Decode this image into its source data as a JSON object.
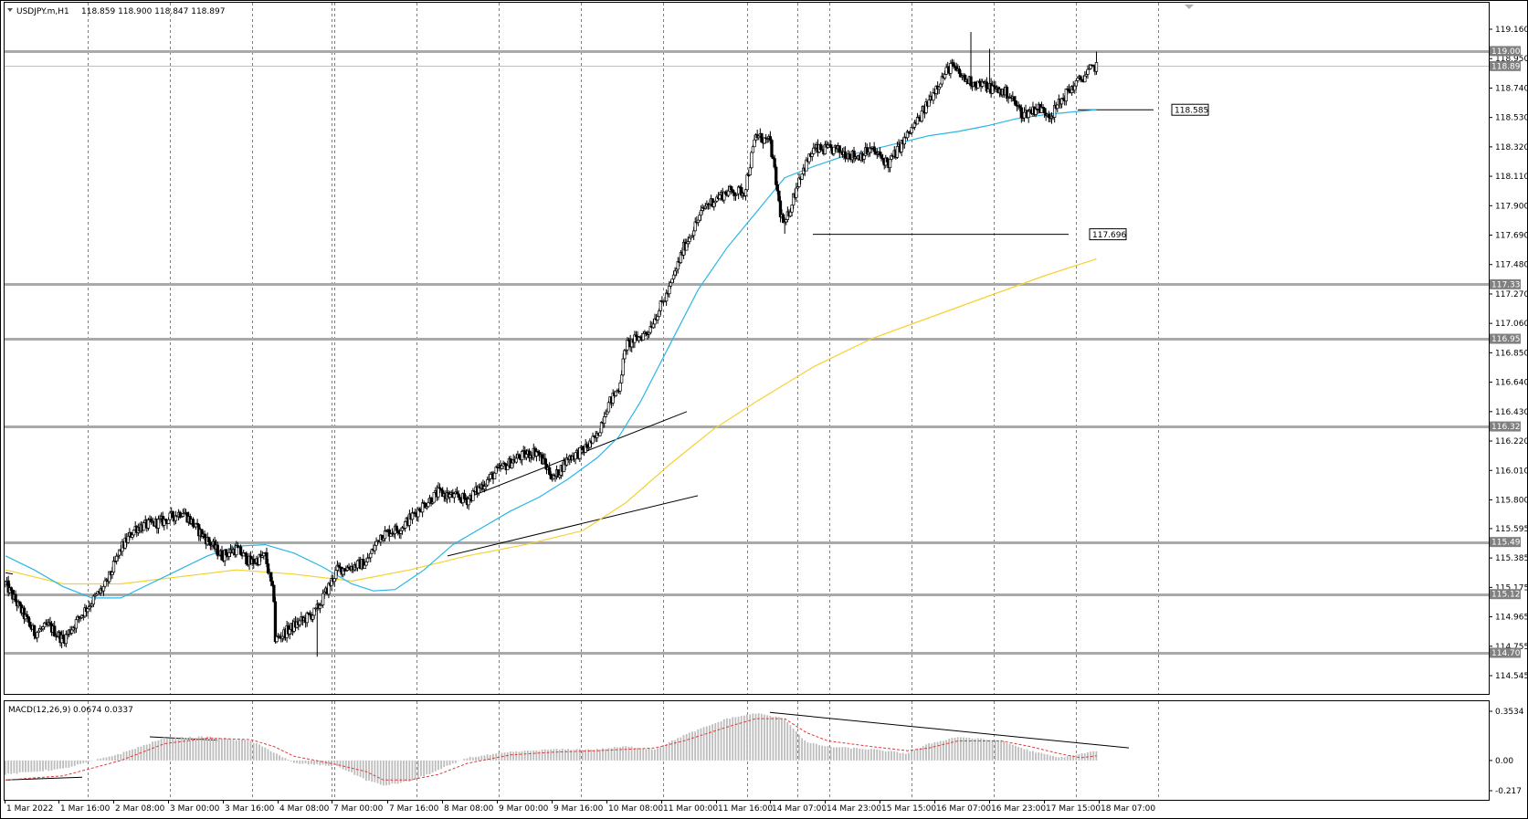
{
  "header": {
    "symbol": "USDJPY.m,H1",
    "ohlc": "118.859 118.900 118.847 118.897"
  },
  "macd_header": {
    "name": "MACD(12,26,9)",
    "values": "0.0674 0.0337"
  },
  "colors": {
    "candle": "#000000",
    "ma_fast": "#29b6e8",
    "ma_slow": "#f5d130",
    "level": "#a9a9a9",
    "histogram": "#bdbdbd",
    "signal": "#e53935",
    "grid": "#808080"
  },
  "chart_data": [
    {
      "type": "candlestick",
      "symbol": "USDJPY.m",
      "timeframe": "H1",
      "ylim": [
        114.545,
        119.16
      ],
      "y_ticks": [
        "119.160",
        "118.950",
        "118.740",
        "118.530",
        "118.320",
        "118.110",
        "117.900",
        "117.690",
        "117.480",
        "117.270",
        "117.060",
        "116.850",
        "116.640",
        "116.430",
        "116.220",
        "116.010",
        "115.800",
        "115.595",
        "115.385",
        "115.175",
        "114.965",
        "114.755",
        "114.545"
      ],
      "x_ticks": [
        "1 Mar 2022",
        "1 Mar 16:00",
        "2 Mar 08:00",
        "3 Mar 00:00",
        "3 Mar 16:00",
        "4 Mar 08:00",
        "7 Mar 00:00",
        "7 Mar 16:00",
        "8 Mar 08:00",
        "9 Mar 00:00",
        "9 Mar 16:00",
        "10 Mar 08:00",
        "11 Mar 00:00",
        "11 Mar 16:00",
        "14 Mar 07:00",
        "14 Mar 23:00",
        "15 Mar 15:00",
        "16 Mar 07:00",
        "16 Mar 23:00",
        "17 Mar 15:00",
        "18 Mar 07:00"
      ],
      "current_price": "118.897",
      "horizontal_levels": [
        "119.004",
        "117.339",
        "116.950",
        "116.324",
        "115.499",
        "115.127",
        "114.708"
      ],
      "price_labels": [
        "118.585",
        "117.696"
      ],
      "close_path": [
        [
          0,
          115.2
        ],
        [
          20,
          114.85
        ],
        [
          30,
          114.9
        ],
        [
          40,
          114.8
        ],
        [
          54,
          115.0
        ],
        [
          70,
          115.2
        ],
        [
          80,
          115.45
        ],
        [
          90,
          115.6
        ],
        [
          110,
          115.65
        ],
        [
          123,
          115.72
        ],
        [
          132,
          115.6
        ],
        [
          150,
          115.4
        ],
        [
          160,
          115.45
        ],
        [
          170,
          115.35
        ],
        [
          180,
          115.4
        ],
        [
          186,
          115.1
        ],
        [
          187,
          114.8
        ],
        [
          200,
          114.9
        ],
        [
          215,
          115.0
        ],
        [
          230,
          115.3
        ],
        [
          250,
          115.35
        ],
        [
          260,
          115.55
        ],
        [
          274,
          115.6
        ],
        [
          288,
          115.75
        ],
        [
          300,
          115.85
        ],
        [
          320,
          115.8
        ],
        [
          340,
          116.0
        ],
        [
          355,
          116.1
        ],
        [
          368,
          116.15
        ],
        [
          380,
          115.95
        ],
        [
          390,
          116.1
        ],
        [
          400,
          116.15
        ],
        [
          410,
          116.25
        ],
        [
          416,
          116.45
        ],
        [
          425,
          116.6
        ],
        [
          430,
          116.9
        ],
        [
          445,
          117.0
        ],
        [
          460,
          117.3
        ],
        [
          470,
          117.6
        ],
        [
          485,
          117.9
        ],
        [
          500,
          118.0
        ],
        [
          512,
          118.0
        ],
        [
          520,
          118.4
        ],
        [
          530,
          118.35
        ],
        [
          537,
          117.85
        ],
        [
          540,
          117.75
        ],
        [
          550,
          118.1
        ],
        [
          560,
          118.3
        ],
        [
          575,
          118.3
        ],
        [
          590,
          118.25
        ],
        [
          600,
          118.3
        ],
        [
          612,
          118.2
        ],
        [
          625,
          118.4
        ],
        [
          635,
          118.55
        ],
        [
          645,
          118.75
        ],
        [
          655,
          118.9
        ],
        [
          665,
          118.8
        ],
        [
          680,
          118.75
        ],
        [
          695,
          118.7
        ],
        [
          705,
          118.55
        ],
        [
          715,
          118.6
        ],
        [
          725,
          118.55
        ],
        [
          735,
          118.7
        ],
        [
          750,
          118.85
        ],
        [
          756,
          118.9
        ]
      ],
      "ma_fast_path": [
        [
          0,
          115.4
        ],
        [
          20,
          115.3
        ],
        [
          40,
          115.18
        ],
        [
          60,
          115.1
        ],
        [
          80,
          115.1
        ],
        [
          100,
          115.2
        ],
        [
          120,
          115.3
        ],
        [
          140,
          115.4
        ],
        [
          160,
          115.47
        ],
        [
          180,
          115.48
        ],
        [
          200,
          115.42
        ],
        [
          220,
          115.32
        ],
        [
          240,
          115.2
        ],
        [
          255,
          115.15
        ],
        [
          270,
          115.16
        ],
        [
          290,
          115.3
        ],
        [
          310,
          115.48
        ],
        [
          330,
          115.6
        ],
        [
          350,
          115.72
        ],
        [
          370,
          115.82
        ],
        [
          390,
          115.95
        ],
        [
          410,
          116.1
        ],
        [
          425,
          116.25
        ],
        [
          440,
          116.5
        ],
        [
          460,
          116.9
        ],
        [
          480,
          117.3
        ],
        [
          500,
          117.6
        ],
        [
          520,
          117.85
        ],
        [
          540,
          118.1
        ],
        [
          560,
          118.18
        ],
        [
          580,
          118.25
        ],
        [
          600,
          118.3
        ],
        [
          620,
          118.35
        ],
        [
          640,
          118.4
        ],
        [
          660,
          118.43
        ],
        [
          680,
          118.47
        ],
        [
          700,
          118.52
        ],
        [
          720,
          118.55
        ],
        [
          740,
          118.57
        ],
        [
          756,
          118.585
        ]
      ],
      "ma_slow_path": [
        [
          0,
          115.3
        ],
        [
          40,
          115.2
        ],
        [
          80,
          115.2
        ],
        [
          120,
          115.25
        ],
        [
          160,
          115.3
        ],
        [
          200,
          115.27
        ],
        [
          240,
          115.22
        ],
        [
          280,
          115.3
        ],
        [
          320,
          115.4
        ],
        [
          360,
          115.48
        ],
        [
          400,
          115.58
        ],
        [
          430,
          115.78
        ],
        [
          460,
          116.05
        ],
        [
          490,
          116.3
        ],
        [
          520,
          116.5
        ],
        [
          560,
          116.75
        ],
        [
          600,
          116.95
        ],
        [
          640,
          117.1
        ],
        [
          680,
          117.25
        ],
        [
          720,
          117.4
        ],
        [
          756,
          117.52
        ]
      ]
    },
    {
      "type": "bar",
      "name": "MACD(12,26,9)",
      "ylim": [
        -0.217,
        0.3534
      ],
      "y_ticks": [
        "0.3534",
        "0.00",
        "-0.217"
      ],
      "histogram_path": [
        [
          0,
          -0.1
        ],
        [
          40,
          -0.06
        ],
        [
          80,
          0.05
        ],
        [
          110,
          0.16
        ],
        [
          140,
          0.17
        ],
        [
          170,
          0.14
        ],
        [
          186,
          0.06
        ],
        [
          200,
          -0.02
        ],
        [
          230,
          -0.04
        ],
        [
          250,
          -0.14
        ],
        [
          262,
          -0.18
        ],
        [
          280,
          -0.15
        ],
        [
          300,
          -0.07
        ],
        [
          320,
          0.02
        ],
        [
          350,
          0.06
        ],
        [
          380,
          0.08
        ],
        [
          410,
          0.08
        ],
        [
          430,
          0.1
        ],
        [
          450,
          0.08
        ],
        [
          470,
          0.18
        ],
        [
          500,
          0.3
        ],
        [
          520,
          0.34
        ],
        [
          540,
          0.3
        ],
        [
          555,
          0.13
        ],
        [
          570,
          0.1
        ],
        [
          600,
          0.08
        ],
        [
          625,
          0.05
        ],
        [
          640,
          0.12
        ],
        [
          660,
          0.17
        ],
        [
          690,
          0.14
        ],
        [
          710,
          0.07
        ],
        [
          730,
          0.02
        ],
        [
          756,
          0.0674
        ]
      ],
      "signal_path": [
        [
          0,
          -0.14
        ],
        [
          40,
          -0.11
        ],
        [
          80,
          0.0
        ],
        [
          110,
          0.12
        ],
        [
          140,
          0.16
        ],
        [
          170,
          0.15
        ],
        [
          186,
          0.1
        ],
        [
          200,
          0.03
        ],
        [
          230,
          -0.03
        ],
        [
          250,
          -0.08
        ],
        [
          262,
          -0.14
        ],
        [
          280,
          -0.14
        ],
        [
          300,
          -0.1
        ],
        [
          320,
          -0.02
        ],
        [
          350,
          0.04
        ],
        [
          380,
          0.06
        ],
        [
          410,
          0.07
        ],
        [
          430,
          0.08
        ],
        [
          450,
          0.09
        ],
        [
          470,
          0.14
        ],
        [
          500,
          0.24
        ],
        [
          520,
          0.3
        ],
        [
          540,
          0.3
        ],
        [
          555,
          0.2
        ],
        [
          570,
          0.14
        ],
        [
          600,
          0.1
        ],
        [
          625,
          0.07
        ],
        [
          640,
          0.09
        ],
        [
          660,
          0.14
        ],
        [
          690,
          0.14
        ],
        [
          710,
          0.1
        ],
        [
          730,
          0.05
        ],
        [
          745,
          0.02
        ],
        [
          756,
          0.0337
        ]
      ]
    }
  ]
}
